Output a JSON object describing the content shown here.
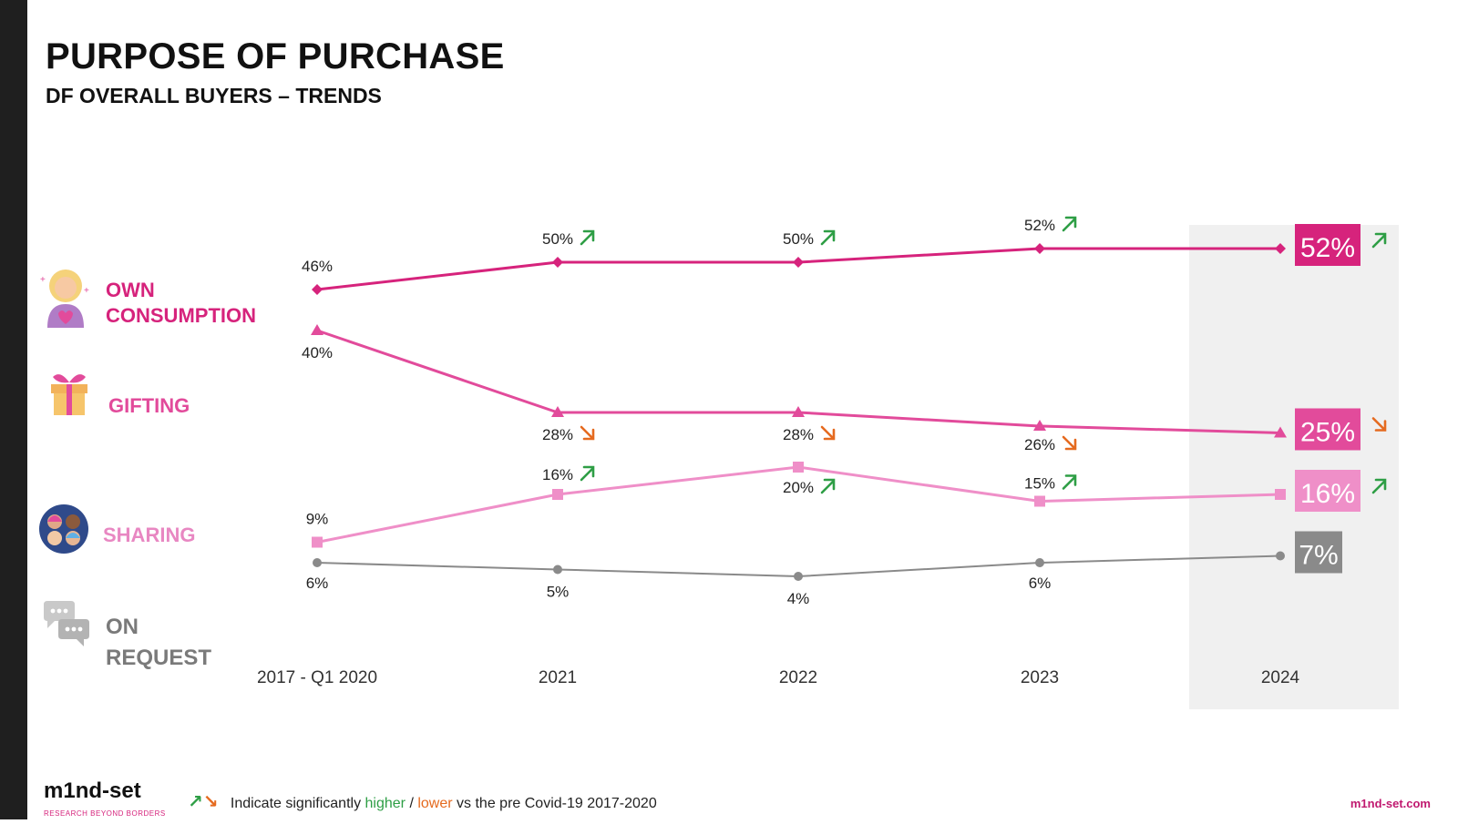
{
  "title": "PURPOSE OF PURCHASE",
  "subtitle": "DF OVERALL BUYERS – TRENDS",
  "series_labels": {
    "own": "OWN CONSUMPTION",
    "gifting": "GIFTING",
    "sharing": "SHARING",
    "on_request": "ON REQUEST"
  },
  "footer": {
    "logo": "m1nd-set",
    "logo_tagline": "RESEARCH BEYOND BORDERS",
    "legend_prefix": "Indicate significantly",
    "legend_higher": "higher",
    "legend_sep": " / ",
    "legend_lower": "lower",
    "legend_suffix": "vs the pre Covid-19 2017-2020",
    "url": "m1nd-set.com"
  },
  "colors": {
    "own": "#d6237c",
    "gifting": "#e24b9b",
    "sharing": "#ef8fc8",
    "on_request": "#8a8a8a",
    "higher": "#2e9e45",
    "lower": "#e56a1f",
    "highlight_bg": "#f0f0f0"
  },
  "chart_data": {
    "type": "line",
    "categories": [
      "2017 - Q1 2020",
      "2021",
      "2022",
      "2023",
      "2024"
    ],
    "highlight_category": "2024",
    "unit": "%",
    "series": [
      {
        "key": "own",
        "name": "OWN CONSUMPTION",
        "marker": "diamond",
        "values": [
          46,
          50,
          50,
          52,
          52
        ],
        "labels": [
          "46%",
          "50%",
          "50%",
          "52%",
          "52%"
        ],
        "trend": [
          null,
          "up",
          "up",
          "up",
          "up"
        ]
      },
      {
        "key": "gifting",
        "name": "GIFTING",
        "marker": "triangle",
        "values": [
          40,
          28,
          28,
          26,
          25
        ],
        "labels": [
          "40%",
          "28%",
          "28%",
          "26%",
          "25%"
        ],
        "trend": [
          null,
          "down",
          "down",
          "down",
          "down"
        ]
      },
      {
        "key": "sharing",
        "name": "SHARING",
        "marker": "square",
        "values": [
          9,
          16,
          20,
          15,
          16
        ],
        "labels": [
          "9%",
          "16%",
          "20%",
          "15%",
          "16%"
        ],
        "trend": [
          null,
          "up",
          "up",
          "up",
          "up"
        ]
      },
      {
        "key": "on_request",
        "name": "ON REQUEST",
        "marker": "circle",
        "values": [
          6,
          5,
          4,
          6,
          7
        ],
        "labels": [
          "6%",
          "5%",
          "4%",
          "6%",
          "7%"
        ],
        "trend": [
          null,
          null,
          null,
          null,
          null
        ]
      }
    ]
  }
}
